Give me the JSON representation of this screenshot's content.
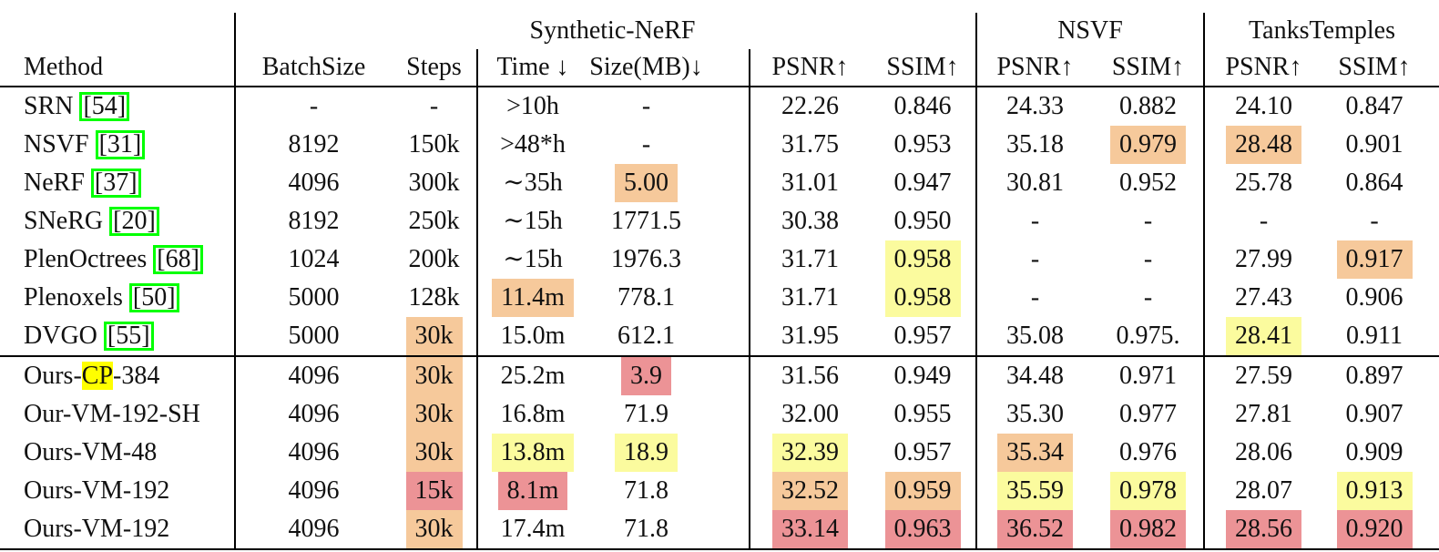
{
  "colors": {
    "hl_red": "#EC9396",
    "hl_orange": "#F6C99B",
    "hl_yellow": "#FBFB9E",
    "hl_cp": "#FFFF00",
    "cite_green": "#00FF00"
  },
  "header": {
    "groups": [
      {
        "label": "Synthetic-NeRF"
      },
      {
        "label": "NSVF"
      },
      {
        "label": "TanksTemples"
      }
    ],
    "columns": [
      "Method",
      "BatchSize",
      "Steps",
      "Time ↓",
      "Size(MB)↓",
      "PSNR↑",
      "SSIM↑",
      "PSNR↑",
      "SSIM↑",
      "PSNR↑",
      "SSIM↑"
    ]
  },
  "sections": {
    "baselines": {
      "rows": [
        {
          "method": {
            "name": "SRN",
            "cite": "54"
          },
          "cells": [
            [
              "-",
              ""
            ],
            [
              "-",
              ""
            ],
            [
              ">10h",
              ""
            ],
            [
              "-",
              ""
            ],
            [
              "22.26",
              ""
            ],
            [
              "0.846",
              ""
            ],
            [
              "24.33",
              ""
            ],
            [
              "0.882",
              ""
            ],
            [
              "24.10",
              ""
            ],
            [
              "0.847",
              ""
            ]
          ]
        },
        {
          "method": {
            "name": "NSVF",
            "cite": "31"
          },
          "cells": [
            [
              "8192",
              ""
            ],
            [
              "150k",
              ""
            ],
            [
              ">48*h",
              ""
            ],
            [
              "-",
              ""
            ],
            [
              "31.75",
              ""
            ],
            [
              "0.953",
              ""
            ],
            [
              "35.18",
              ""
            ],
            [
              "0.979",
              "orange"
            ],
            [
              "28.48",
              "orange"
            ],
            [
              "0.901",
              ""
            ]
          ]
        },
        {
          "method": {
            "name": "NeRF",
            "cite": "37"
          },
          "cells": [
            [
              "4096",
              ""
            ],
            [
              "300k",
              ""
            ],
            [
              "∼35h",
              ""
            ],
            [
              "5.00",
              "orange"
            ],
            [
              "31.01",
              ""
            ],
            [
              "0.947",
              ""
            ],
            [
              "30.81",
              ""
            ],
            [
              "0.952",
              ""
            ],
            [
              "25.78",
              ""
            ],
            [
              "0.864",
              ""
            ]
          ]
        },
        {
          "method": {
            "name": "SNeRG",
            "cite": "20"
          },
          "cells": [
            [
              "8192",
              ""
            ],
            [
              "250k",
              ""
            ],
            [
              "∼15h",
              ""
            ],
            [
              "1771.5",
              ""
            ],
            [
              "30.38",
              ""
            ],
            [
              "0.950",
              ""
            ],
            [
              "-",
              ""
            ],
            [
              "-",
              ""
            ],
            [
              "-",
              ""
            ],
            [
              "-",
              ""
            ]
          ]
        },
        {
          "method": {
            "name": "PlenOctrees",
            "cite": "68"
          },
          "cells": [
            [
              "1024",
              ""
            ],
            [
              "200k",
              ""
            ],
            [
              "∼15h",
              ""
            ],
            [
              "1976.3",
              ""
            ],
            [
              "31.71",
              ""
            ],
            [
              "0.958",
              "yellow"
            ],
            [
              "-",
              ""
            ],
            [
              "-",
              ""
            ],
            [
              "27.99",
              ""
            ],
            [
              "0.917",
              "orange"
            ]
          ]
        },
        {
          "method": {
            "name": "Plenoxels",
            "cite": "50"
          },
          "cells": [
            [
              "5000",
              ""
            ],
            [
              "128k",
              ""
            ],
            [
              "11.4m",
              "orange"
            ],
            [
              "778.1",
              ""
            ],
            [
              "31.71",
              ""
            ],
            [
              "0.958",
              "yellow"
            ],
            [
              "-",
              ""
            ],
            [
              "-",
              ""
            ],
            [
              "27.43",
              ""
            ],
            [
              "0.906",
              ""
            ]
          ]
        },
        {
          "method": {
            "name": "DVGO",
            "cite": "55"
          },
          "cells": [
            [
              "5000",
              ""
            ],
            [
              "30k",
              "orange"
            ],
            [
              "15.0m",
              ""
            ],
            [
              "612.1",
              ""
            ],
            [
              "31.95",
              ""
            ],
            [
              "0.957",
              ""
            ],
            [
              "35.08",
              ""
            ],
            [
              "0.975.",
              ""
            ],
            [
              "28.41",
              "yellow"
            ],
            [
              "0.911",
              ""
            ]
          ]
        }
      ]
    },
    "ours": {
      "rows": [
        {
          "method": {
            "name": "Ours-CP-384",
            "highlight": "CP"
          },
          "cells": [
            [
              "4096",
              ""
            ],
            [
              "30k",
              "orange"
            ],
            [
              "25.2m",
              ""
            ],
            [
              "3.9",
              "red"
            ],
            [
              "31.56",
              ""
            ],
            [
              "0.949",
              ""
            ],
            [
              "34.48",
              ""
            ],
            [
              "0.971",
              ""
            ],
            [
              "27.59",
              ""
            ],
            [
              "0.897",
              ""
            ]
          ]
        },
        {
          "method": {
            "name": "Our-VM-192-SH"
          },
          "cells": [
            [
              "4096",
              ""
            ],
            [
              "30k",
              "orange"
            ],
            [
              "16.8m",
              ""
            ],
            [
              "71.9",
              ""
            ],
            [
              "32.00",
              ""
            ],
            [
              "0.955",
              ""
            ],
            [
              "35.30",
              ""
            ],
            [
              "0.977",
              ""
            ],
            [
              "27.81",
              ""
            ],
            [
              "0.907",
              ""
            ]
          ]
        },
        {
          "method": {
            "name": "Ours-VM-48"
          },
          "cells": [
            [
              "4096",
              ""
            ],
            [
              "30k",
              "orange"
            ],
            [
              "13.8m",
              "yellow"
            ],
            [
              "18.9",
              "yellow"
            ],
            [
              "32.39",
              "yellow"
            ],
            [
              "0.957",
              ""
            ],
            [
              "35.34",
              "orange"
            ],
            [
              "0.976",
              ""
            ],
            [
              "28.06",
              ""
            ],
            [
              "0.909",
              ""
            ]
          ]
        },
        {
          "method": {
            "name": "Ours-VM-192"
          },
          "cells": [
            [
              "4096",
              ""
            ],
            [
              "15k",
              "red"
            ],
            [
              "8.1m",
              "red"
            ],
            [
              "71.8",
              ""
            ],
            [
              "32.52",
              "orange"
            ],
            [
              "0.959",
              "orange"
            ],
            [
              "35.59",
              "yellow"
            ],
            [
              "0.978",
              "yellow"
            ],
            [
              "28.07",
              ""
            ],
            [
              "0.913",
              "yellow"
            ]
          ]
        },
        {
          "method": {
            "name": "Ours-VM-192"
          },
          "cells": [
            [
              "4096",
              ""
            ],
            [
              "30k",
              "orange"
            ],
            [
              "17.4m",
              ""
            ],
            [
              "71.8",
              ""
            ],
            [
              "33.14",
              "red"
            ],
            [
              "0.963",
              "red"
            ],
            [
              "36.52",
              "red"
            ],
            [
              "0.982",
              "red"
            ],
            [
              "28.56",
              "red"
            ],
            [
              "0.920",
              "red"
            ]
          ]
        }
      ]
    }
  }
}
